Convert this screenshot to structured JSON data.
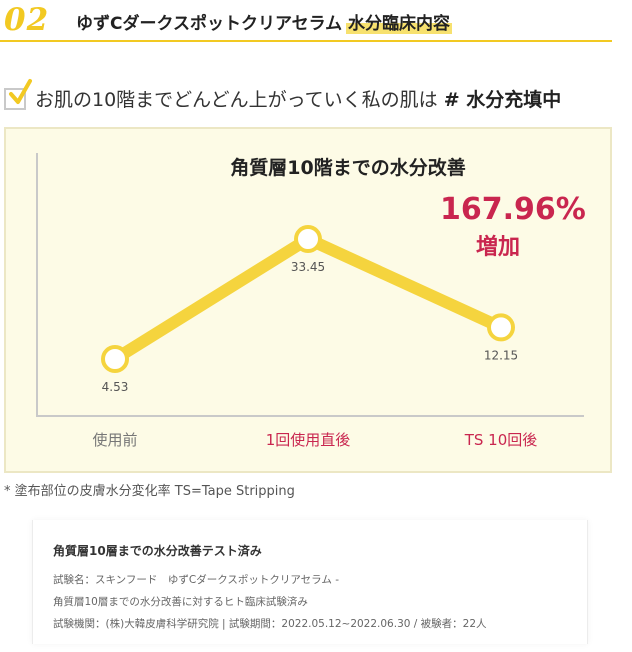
{
  "header": {
    "step_number": "02",
    "product_name": "ゆずCダークスポットクリアセラム",
    "highlight": "水分臨床内容"
  },
  "subheading": {
    "text": "お肌の10階までどんどん上がっていく私の肌は",
    "emphasis": "# 水分充填中"
  },
  "chart_data": {
    "type": "line",
    "title": "角質層10階までの水分改善",
    "categories": [
      "使用前",
      "1回使用直後",
      "TS 10回後"
    ],
    "series": [
      {
        "values": [
          4.53,
          33.45,
          12.15
        ]
      }
    ],
    "value_labels": [
      "4.53",
      "33.45",
      "12.15"
    ],
    "annotation": {
      "value": "167.96%",
      "label": "増加"
    },
    "grid": false,
    "colors": {
      "line": "#f5d43e",
      "highlight_category": "#c9264f",
      "annotation": "#c9264f",
      "axis": "#c9c9c9"
    }
  },
  "footnote": "* 塗布部位の皮膚水分変化率 TS=Tape Stripping",
  "test_info": {
    "title": "角質層10層までの水分改善テスト済み",
    "lines": [
      "試験名：スキンフード　ゆずCダークスポットクリアセラム -",
      "角質層10層までの水分改善に対するヒト臨床試験済み",
      "試験機関：(株)大韓皮膚科学研究院 | 試験期間：2022.05.12~2022.06.30 / 被験者：22人"
    ]
  }
}
